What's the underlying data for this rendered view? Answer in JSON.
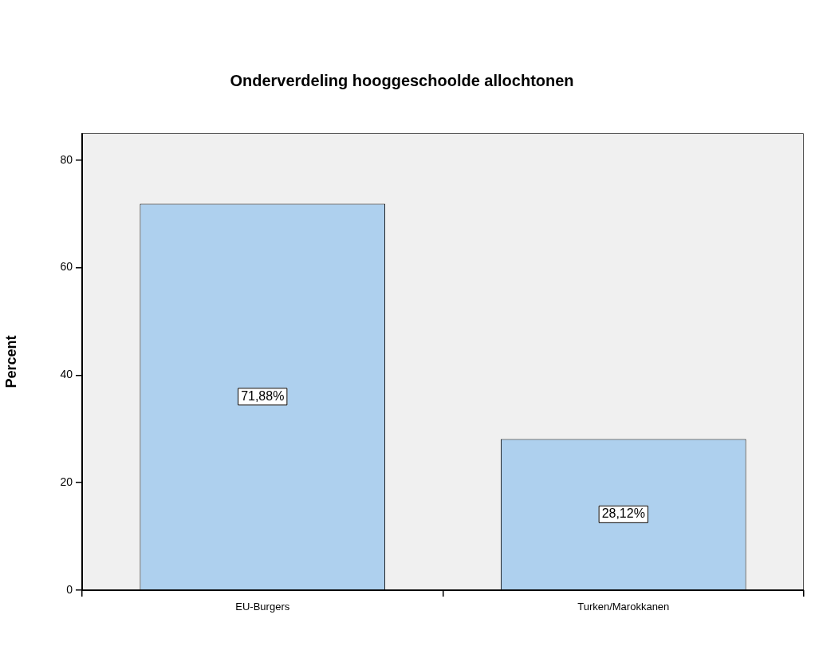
{
  "chart_data": {
    "type": "bar",
    "title": "Onderverdeling hooggeschoolde allochtonen",
    "ylabel": "Percent",
    "categories": [
      "EU-Burgers",
      "Turken/Marokkanen"
    ],
    "values": [
      71.88,
      28.12
    ],
    "value_labels": [
      "71,88%",
      "28,12%"
    ],
    "color": "#aed0ee",
    "ylim": [
      0,
      85
    ],
    "yticks": [
      0,
      20,
      40,
      60,
      80
    ],
    "grid": false,
    "legend": false
  }
}
